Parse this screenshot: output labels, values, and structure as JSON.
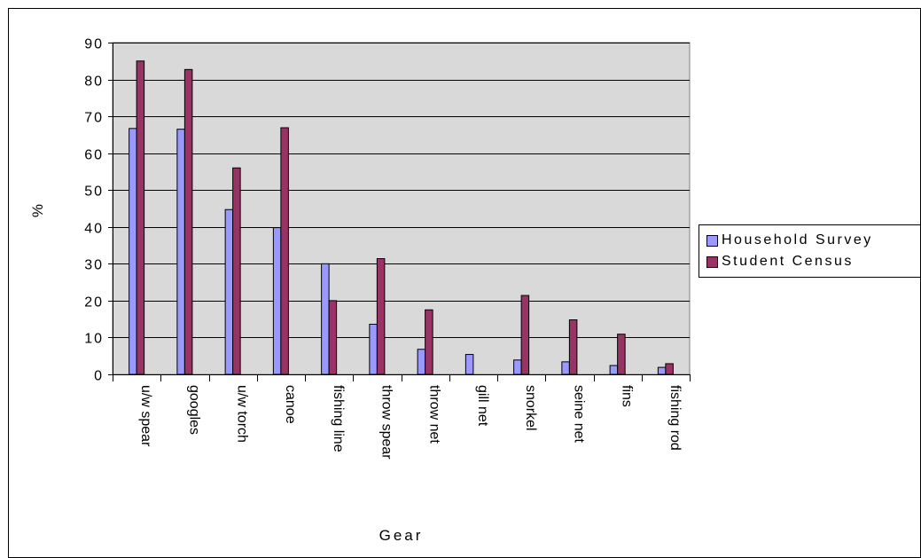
{
  "chart_data": {
    "type": "bar",
    "xlabel": "Gear",
    "ylabel": "%",
    "ylim": [
      0,
      90
    ],
    "yticks": [
      "0",
      "10",
      "20",
      "30",
      "40",
      "50",
      "60",
      "70",
      "80",
      "90"
    ],
    "categories": [
      "u/w spear",
      "googles",
      "u/w torch",
      "canoe",
      "fishing line",
      "throw spear",
      "throw net",
      "gill net",
      "snorkel",
      "seine net",
      "fins",
      "fishing rod"
    ],
    "series": [
      {
        "name": "Household Survey",
        "color": "#9999ff",
        "values": [
          66.7,
          66.5,
          44.7,
          39.8,
          30.0,
          13.6,
          6.8,
          5.4,
          3.9,
          3.4,
          2.4,
          1.9
        ]
      },
      {
        "name": "Student Census",
        "color": "#993366",
        "values": [
          85.0,
          82.7,
          56.0,
          66.9,
          20.0,
          31.4,
          17.5,
          0,
          21.4,
          14.8,
          10.9,
          2.9
        ]
      }
    ],
    "plot_background": "#d9d9d9",
    "grid": true,
    "legend_position": "right"
  }
}
